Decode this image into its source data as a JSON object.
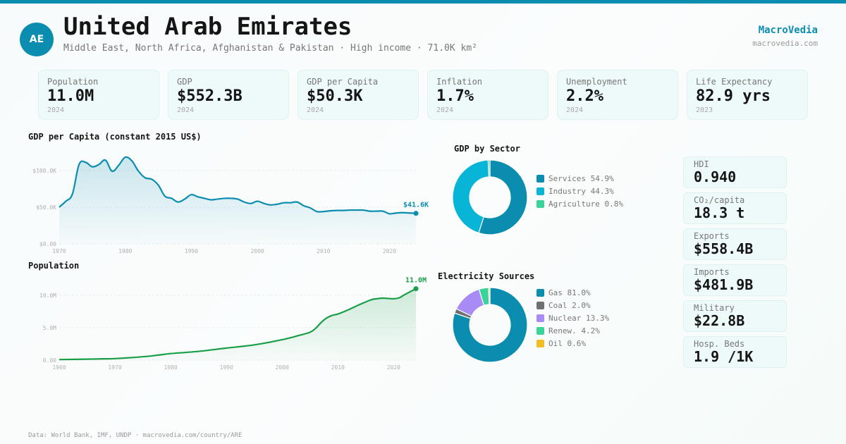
{
  "colors": {
    "accent": "#0b8db0",
    "population_line": "#1a9e48",
    "title": "#151515",
    "muted": "#777777"
  },
  "header": {
    "avatar_text": "AE",
    "title": "United Arab Emirates",
    "subtitle": "Middle East, North Africa, Afghanistan & Pakistan · High income · 71.0K km²",
    "brand": "MacroVedia",
    "brand_url": "macrovedia.com"
  },
  "stats": [
    {
      "label": "Population",
      "value": "11.0M",
      "year": "2024"
    },
    {
      "label": "GDP",
      "value": "$552.3B",
      "year": "2024"
    },
    {
      "label": "GDP per Capita",
      "value": "$50.3K",
      "year": "2024"
    },
    {
      "label": "Inflation",
      "value": "1.7%",
      "year": "2024"
    },
    {
      "label": "Unemployment",
      "value": "2.2%",
      "year": "2024"
    },
    {
      "label": "Life Expectancy",
      "value": "82.9 yrs",
      "year": "2023"
    }
  ],
  "side_stats": [
    {
      "label": "HDI",
      "value": "0.940"
    },
    {
      "label": "CO₂/capita",
      "value": "18.3 t"
    },
    {
      "label": "Exports",
      "value": "$558.4B"
    },
    {
      "label": "Imports",
      "value": "$481.9B"
    },
    {
      "label": "Military",
      "value": "$22.8B"
    },
    {
      "label": "Hosp. Beds",
      "value": "1.9 /1K"
    }
  ],
  "footer": "Data: World Bank, IMF, UNDP · macrovedia.com/country/ARE",
  "chart_data": [
    {
      "id": "gdp_per_capita",
      "type": "area",
      "title": "GDP per Capita (constant 2015 US$)",
      "xlabel": "",
      "ylabel": "",
      "color": "#0b8db0",
      "xlim": [
        1970,
        2024
      ],
      "ylim": [
        0,
        120000
      ],
      "yticks": [
        0,
        50000,
        100000
      ],
      "ytick_labels": [
        "$0.00",
        "$50.0K",
        "$100.0K"
      ],
      "xticks": [
        1970,
        1980,
        1990,
        2000,
        2010,
        2020
      ],
      "xtick_labels": [
        "1970",
        "1980",
        "1990",
        "2000",
        "2010",
        "2020"
      ],
      "grid": true,
      "end_label": "$41.6K",
      "x": [
        1970,
        1971,
        1972,
        1973,
        1974,
        1975,
        1976,
        1977,
        1978,
        1979,
        1980,
        1981,
        1982,
        1983,
        1984,
        1985,
        1986,
        1987,
        1988,
        1989,
        1990,
        1991,
        1992,
        1993,
        1994,
        1995,
        1996,
        1997,
        1998,
        1999,
        2000,
        2001,
        2002,
        2003,
        2004,
        2005,
        2006,
        2007,
        2008,
        2009,
        2010,
        2011,
        2012,
        2013,
        2014,
        2015,
        2016,
        2017,
        2018,
        2019,
        2020,
        2021,
        2022,
        2023,
        2024
      ],
      "values": [
        50000,
        58000,
        68000,
        108000,
        111000,
        105000,
        108000,
        114000,
        99000,
        107000,
        118000,
        113000,
        99000,
        90000,
        88000,
        80000,
        65000,
        62000,
        57000,
        61000,
        67000,
        64000,
        62000,
        60000,
        61000,
        62000,
        62000,
        61000,
        57000,
        55000,
        58000,
        55000,
        53000,
        54000,
        56000,
        56000,
        57000,
        52000,
        49000,
        44000,
        44000,
        45000,
        45500,
        45500,
        46000,
        46000,
        46000,
        44500,
        44500,
        44500,
        41000,
        42000,
        42500,
        42000,
        41600
      ]
    },
    {
      "id": "population",
      "type": "area",
      "title": "Population",
      "xlabel": "",
      "ylabel": "",
      "color": "#1a9e48",
      "xlim": [
        1960,
        2024
      ],
      "ylim": [
        0,
        11500000
      ],
      "yticks": [
        0,
        5000000,
        10000000
      ],
      "ytick_labels": [
        "0.00",
        "5.0M",
        "10.0M"
      ],
      "xticks": [
        1960,
        1970,
        1980,
        1990,
        2000,
        2010,
        2020
      ],
      "xtick_labels": [
        "1960",
        "1970",
        "1980",
        "1990",
        "2000",
        "2010",
        "2020"
      ],
      "grid": true,
      "end_label": "11.0M",
      "x": [
        1960,
        1965,
        1968,
        1970,
        1975,
        1978,
        1980,
        1985,
        1990,
        1995,
        2000,
        2003,
        2005,
        2006,
        2007,
        2008,
        2009,
        2010,
        2012,
        2014,
        2016,
        2017,
        2018,
        2019,
        2020,
        2021,
        2022,
        2023,
        2024
      ],
      "values": [
        90000,
        150000,
        200000,
        235000,
        520000,
        800000,
        1010000,
        1350000,
        1860000,
        2350000,
        3150000,
        3800000,
        4300000,
        4900000,
        5800000,
        6500000,
        6900000,
        7100000,
        7800000,
        8600000,
        9300000,
        9450000,
        9550000,
        9500000,
        9450000,
        9600000,
        10100000,
        10550000,
        11000000
      ]
    },
    {
      "id": "gdp_by_sector",
      "type": "pie",
      "title": "GDP by Sector",
      "donut": true,
      "categories": [
        "Services",
        "Industry",
        "Agriculture"
      ],
      "values": [
        54.9,
        44.3,
        0.8
      ],
      "legend_labels": [
        "Services 54.9%",
        "Industry 44.3%",
        "Agriculture 0.8%"
      ],
      "colors": [
        "#0b8db0",
        "#09b5d6",
        "#3ad39a"
      ],
      "legend": "right"
    },
    {
      "id": "electricity_sources",
      "type": "pie",
      "title": "Electricity Sources",
      "donut": true,
      "categories": [
        "Gas",
        "Coal",
        "Nuclear",
        "Renew.",
        "Oil"
      ],
      "values": [
        81.0,
        2.0,
        13.3,
        4.2,
        0.6
      ],
      "legend_labels": [
        "Gas 81.0%",
        "Coal 2.0%",
        "Nuclear 13.3%",
        "Renew. 4.2%",
        "Oil 0.6%"
      ],
      "colors": [
        "#0b8db0",
        "#707070",
        "#a98bf5",
        "#3ad39a",
        "#f4bd24"
      ],
      "legend": "right"
    }
  ]
}
